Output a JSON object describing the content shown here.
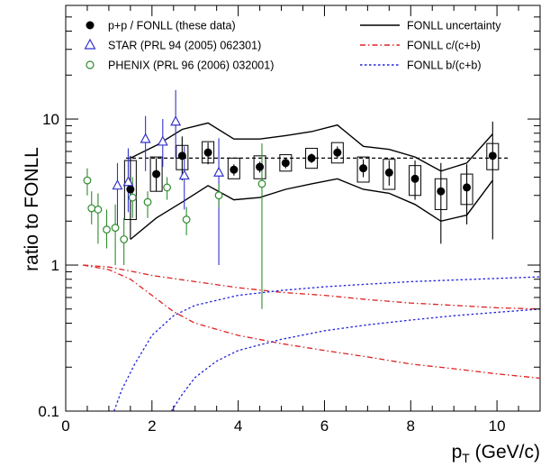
{
  "chart_data": {
    "type": "scatter",
    "xlabel": {
      "main": "p",
      "sub": "T",
      "rest": " (GeV/c)"
    },
    "ylabel": "ratio to FONLL",
    "xlim": [
      0,
      11
    ],
    "ylim": [
      0.1,
      60
    ],
    "ylog": true,
    "x_ticks": [
      {
        "value": 0,
        "label": "0"
      },
      {
        "value": 2,
        "label": "2"
      },
      {
        "value": 4,
        "label": "4"
      },
      {
        "value": 6,
        "label": "6"
      },
      {
        "value": 8,
        "label": "8"
      },
      {
        "value": 10,
        "label": "10"
      }
    ],
    "y_ticks": [
      {
        "value": 0.1,
        "label": "0.1"
      },
      {
        "value": 1,
        "label": "1"
      },
      {
        "value": 10,
        "label": "10"
      }
    ],
    "legend_left": [
      {
        "label": "p+p / FONLL (these data)",
        "marker": "filled-circle",
        "color": "#000000"
      },
      {
        "label": "STAR (PRL 94 (2005) 062301)",
        "marker": "open-triangle",
        "color": "#3333cc"
      },
      {
        "label": "PHENIX (PRL 96 (2006) 032001)",
        "marker": "open-circle",
        "color": "#2e8b2e"
      }
    ],
    "legend_right": [
      {
        "label": "FONLL uncertainty",
        "line": "solid",
        "color": "#000000"
      },
      {
        "label": "FONLL c/(c+b)",
        "line": "dashdot",
        "color": "#dd2222"
      },
      {
        "label": "FONLL b/(c+b)",
        "line": "dashed",
        "color": "#2222dd"
      }
    ],
    "reference_line": {
      "y": 5.4,
      "x": [
        1.4,
        10.25
      ],
      "style": "dashed",
      "color": "#000000"
    },
    "series": [
      {
        "name": "p+p / FONLL (these data)",
        "color": "#000000",
        "points": [
          {
            "x": 1.5,
            "y": 3.3,
            "lo": 1.5,
            "hi": 5.6,
            "sys_lo": 2.05,
            "sys_hi": 5.2
          },
          {
            "x": 2.1,
            "y": 4.2,
            "lo": 3.2,
            "hi": 5.4,
            "sys_lo": 3.2,
            "sys_hi": 5.5
          },
          {
            "x": 2.7,
            "y": 5.6,
            "lo": 3.8,
            "hi": 7.6,
            "sys_lo": 4.5,
            "sys_hi": 6.6
          },
          {
            "x": 3.3,
            "y": 5.9,
            "lo": 4.9,
            "hi": 6.9,
            "sys_lo": 5.0,
            "sys_hi": 7.0
          },
          {
            "x": 3.9,
            "y": 4.5,
            "lo": 4.1,
            "hi": 4.9,
            "sys_lo": 3.9,
            "sys_hi": 5.4
          },
          {
            "x": 4.5,
            "y": 4.7,
            "lo": 4.3,
            "hi": 5.1,
            "sys_lo": 3.9,
            "sys_hi": 5.6
          },
          {
            "x": 5.1,
            "y": 5.0,
            "lo": 4.6,
            "hi": 5.4,
            "sys_lo": 4.4,
            "sys_hi": 5.7
          },
          {
            "x": 5.7,
            "y": 5.4,
            "lo": 5.0,
            "hi": 5.8,
            "sys_lo": 4.6,
            "sys_hi": 6.3
          },
          {
            "x": 6.3,
            "y": 5.9,
            "lo": 5.4,
            "hi": 6.5,
            "sys_lo": 5.0,
            "sys_hi": 6.9
          },
          {
            "x": 6.9,
            "y": 4.6,
            "lo": 4.0,
            "hi": 5.3,
            "sys_lo": 3.7,
            "sys_hi": 5.5
          },
          {
            "x": 7.5,
            "y": 4.3,
            "lo": 3.5,
            "hi": 5.2,
            "sys_lo": 3.3,
            "sys_hi": 5.3
          },
          {
            "x": 8.1,
            "y": 3.9,
            "lo": 2.8,
            "hi": 5.2,
            "sys_lo": 3.0,
            "sys_hi": 4.8
          },
          {
            "x": 8.7,
            "y": 3.2,
            "lo": 1.4,
            "hi": 5.0,
            "sys_lo": 2.4,
            "sys_hi": 3.9
          },
          {
            "x": 9.3,
            "y": 3.4,
            "lo": 1.9,
            "hi": 4.9,
            "sys_lo": 2.6,
            "sys_hi": 4.2
          },
          {
            "x": 9.9,
            "y": 5.6,
            "lo": 1.5,
            "hi": 9.6,
            "sys_lo": 4.5,
            "sys_hi": 6.8
          }
        ]
      },
      {
        "name": "STAR (PRL 94 (2005) 062301)",
        "color": "#3333cc",
        "points": [
          {
            "x": 1.2,
            "y": 3.5,
            "lo": 1.8,
            "hi": 5.0
          },
          {
            "x": 1.45,
            "y": 3.7,
            "lo": 2.3,
            "hi": 6.3
          },
          {
            "x": 1.85,
            "y": 7.3,
            "lo": 4.4,
            "hi": 10.5
          },
          {
            "x": 2.25,
            "y": 7.0,
            "lo": 4.7,
            "hi": 10.0
          },
          {
            "x": 2.55,
            "y": 9.6,
            "lo": 5.4,
            "hi": 15.8
          },
          {
            "x": 2.75,
            "y": 4.1,
            "lo": 2.4,
            "hi": 6.5
          },
          {
            "x": 3.55,
            "y": 4.3,
            "lo": 1.0,
            "hi": 7.4
          }
        ]
      },
      {
        "name": "PHENIX (PRL 96 (2006) 032001)",
        "color": "#2e8b2e",
        "points": [
          {
            "x": 0.5,
            "y": 3.8,
            "lo": 3.0,
            "hi": 4.6
          },
          {
            "x": 0.6,
            "y": 2.45,
            "lo": 1.9,
            "hi": 3.2
          },
          {
            "x": 0.75,
            "y": 2.4,
            "lo": 1.4,
            "hi": 3.1
          },
          {
            "x": 0.95,
            "y": 1.75,
            "lo": 1.3,
            "hi": 2.4
          },
          {
            "x": 1.15,
            "y": 1.8,
            "lo": 1.0,
            "hi": 2.6
          },
          {
            "x": 1.35,
            "y": 1.5,
            "lo": 1.0,
            "hi": 2.1
          },
          {
            "x": 1.55,
            "y": 2.9,
            "lo": 2.1,
            "hi": 4.0
          },
          {
            "x": 1.9,
            "y": 2.7,
            "lo": 2.1,
            "hi": 3.2
          },
          {
            "x": 2.35,
            "y": 3.4,
            "lo": 2.8,
            "hi": 4.0
          },
          {
            "x": 2.8,
            "y": 2.05,
            "lo": 1.6,
            "hi": 2.5
          },
          {
            "x": 3.55,
            "y": 3.0,
            "lo": 2.5,
            "hi": 3.6
          },
          {
            "x": 4.55,
            "y": 3.6,
            "lo": 0.5,
            "hi": 6.8
          }
        ]
      }
    ],
    "curves": [
      {
        "name": "FONLL uncertainty",
        "style": "solid",
        "color": "#000000",
        "points": [
          [
            1.5,
            1.5
          ],
          [
            2.1,
            2.1
          ],
          [
            2.7,
            2.7
          ],
          [
            3.3,
            3.5
          ],
          [
            3.9,
            2.8
          ],
          [
            4.5,
            2.9
          ],
          [
            5.1,
            3.3
          ],
          [
            5.7,
            3.6
          ],
          [
            6.3,
            3.9
          ],
          [
            6.9,
            3.3
          ],
          [
            7.5,
            3.1
          ],
          [
            8.1,
            2.6
          ],
          [
            8.7,
            2.0
          ],
          [
            9.3,
            2.2
          ],
          [
            9.9,
            3.8
          ]
        ]
      },
      {
        "name": "FONLL uncertainty",
        "style": "solid",
        "color": "#000000",
        "points": [
          [
            1.5,
            5.4
          ],
          [
            2.1,
            6.6
          ],
          [
            2.7,
            8.5
          ],
          [
            3.3,
            9.4
          ],
          [
            3.9,
            7.3
          ],
          [
            4.5,
            7.3
          ],
          [
            5.1,
            7.7
          ],
          [
            5.7,
            8.2
          ],
          [
            6.3,
            9.1
          ],
          [
            6.9,
            6.5
          ],
          [
            7.5,
            6.2
          ],
          [
            8.1,
            5.5
          ],
          [
            8.7,
            4.4
          ],
          [
            9.3,
            5.0
          ],
          [
            9.9,
            7.9
          ]
        ]
      },
      {
        "name": "FONLL c/(c+b)",
        "style": "dashdot",
        "color": "#dd2222",
        "points": [
          [
            0.4,
            1.0
          ],
          [
            1.0,
            0.97
          ],
          [
            1.5,
            0.91
          ],
          [
            2.0,
            0.85
          ],
          [
            3.0,
            0.77
          ],
          [
            4.0,
            0.7
          ],
          [
            5.0,
            0.65
          ],
          [
            6.0,
            0.62
          ],
          [
            7.0,
            0.58
          ],
          [
            8.0,
            0.55
          ],
          [
            9.0,
            0.53
          ],
          [
            10.0,
            0.51
          ],
          [
            11.0,
            0.5
          ]
        ]
      },
      {
        "name": "FONLL c/(c+b)",
        "style": "dashdot",
        "color": "#dd2222",
        "points": [
          [
            0.4,
            1.0
          ],
          [
            1.0,
            0.93
          ],
          [
            1.5,
            0.8
          ],
          [
            2.0,
            0.62
          ],
          [
            2.5,
            0.48
          ],
          [
            3.0,
            0.4
          ],
          [
            4.0,
            0.33
          ],
          [
            5.0,
            0.29
          ],
          [
            6.0,
            0.26
          ],
          [
            7.0,
            0.235
          ],
          [
            8.0,
            0.21
          ],
          [
            9.0,
            0.195
          ],
          [
            10.0,
            0.18
          ],
          [
            11.0,
            0.168
          ]
        ]
      },
      {
        "name": "FONLL b/(c+b)",
        "style": "dashed",
        "color": "#2222dd",
        "points": [
          [
            1.12,
            0.1
          ],
          [
            1.3,
            0.14
          ],
          [
            1.6,
            0.21
          ],
          [
            2.0,
            0.33
          ],
          [
            2.5,
            0.45
          ],
          [
            3.0,
            0.53
          ],
          [
            4.0,
            0.62
          ],
          [
            5.0,
            0.67
          ],
          [
            6.0,
            0.71
          ],
          [
            7.0,
            0.74
          ],
          [
            8.0,
            0.77
          ],
          [
            9.0,
            0.79
          ],
          [
            10.0,
            0.81
          ],
          [
            11.0,
            0.83
          ]
        ]
      },
      {
        "name": "FONLL b/(c+b)",
        "style": "dashed",
        "color": "#2222dd",
        "points": [
          [
            2.45,
            0.1
          ],
          [
            2.7,
            0.13
          ],
          [
            3.0,
            0.17
          ],
          [
            3.5,
            0.22
          ],
          [
            4.0,
            0.26
          ],
          [
            5.0,
            0.31
          ],
          [
            6.0,
            0.355
          ],
          [
            7.0,
            0.39
          ],
          [
            8.0,
            0.42
          ],
          [
            9.0,
            0.45
          ],
          [
            10.0,
            0.475
          ],
          [
            11.0,
            0.5
          ]
        ]
      }
    ]
  }
}
